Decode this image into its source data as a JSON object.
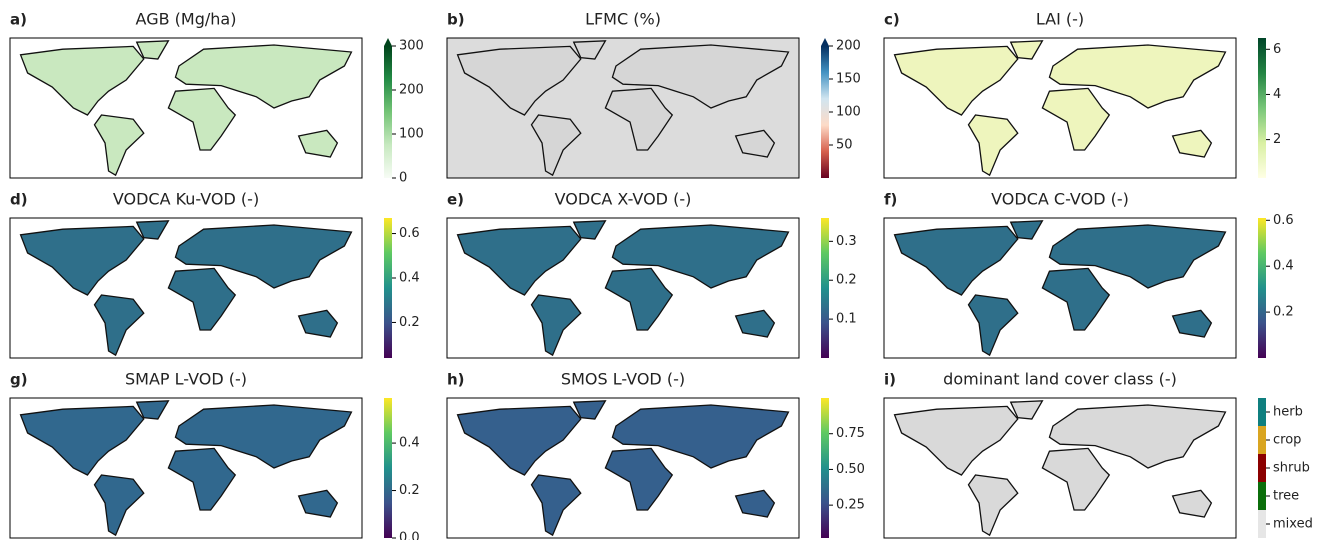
{
  "panels": [
    {
      "label": "a)",
      "title": "AGB (Mg/ha)",
      "background": "#ffffff",
      "land_color": "#c9e8bf",
      "colorbar": {
        "lim": [
          0,
          300
        ],
        "ticks": [
          0,
          100,
          200,
          300
        ],
        "extend": "max",
        "colors": [
          "#f7fcf5",
          "#c7e9c0",
          "#74c476",
          "#238b45",
          "#00441b"
        ]
      }
    },
    {
      "label": "b)",
      "title": "LFMC (%)",
      "background": "#dcdcdc",
      "land_color": "#d6d6d6",
      "colorbar": {
        "lim": [
          0,
          200
        ],
        "ticks": [
          50,
          100,
          150,
          200
        ],
        "extend": "max",
        "colors": [
          "#67001f",
          "#d6604d",
          "#fddbc7",
          "#d1e5f0",
          "#4393c3",
          "#053061"
        ]
      }
    },
    {
      "label": "c)",
      "title": "LAI (-)",
      "background": "#ffffff",
      "land_color": "#eef5bd",
      "colorbar": {
        "lim": [
          0.3,
          6.5
        ],
        "ticks": [
          2,
          4,
          6
        ],
        "colors": [
          "#ffffe5",
          "#d9f0a3",
          "#78c679",
          "#238443",
          "#004529"
        ]
      }
    },
    {
      "label": "d)",
      "title": "VODCA Ku-VOD (-)",
      "background": "#ffffff",
      "land_color": "#2f6f8a",
      "colorbar": {
        "lim": [
          0.04,
          0.67
        ],
        "ticks": [
          0.2,
          0.4,
          0.6
        ],
        "colors": [
          "#440154",
          "#3b528b",
          "#21918c",
          "#5ec962",
          "#fde725"
        ]
      }
    },
    {
      "label": "e)",
      "title": "VODCA X-VOD (-)",
      "background": "#ffffff",
      "land_color": "#2f6f8a",
      "colorbar": {
        "lim": [
          0,
          0.36
        ],
        "ticks": [
          0.1,
          0.2,
          0.3
        ],
        "colors": [
          "#440154",
          "#3b528b",
          "#21918c",
          "#5ec962",
          "#fde725"
        ]
      }
    },
    {
      "label": "f)",
      "title": "VODCA C-VOD (-)",
      "background": "#ffffff",
      "land_color": "#2f6f8a",
      "colorbar": {
        "lim": [
          0,
          0.61
        ],
        "ticks": [
          0.2,
          0.4,
          0.6
        ],
        "colors": [
          "#440154",
          "#3b528b",
          "#21918c",
          "#5ec962",
          "#fde725"
        ]
      }
    },
    {
      "label": "g)",
      "title": "SMAP L-VOD (-)",
      "background": "#ffffff",
      "land_color": "#31688e",
      "colorbar": {
        "lim": [
          0,
          0.59
        ],
        "ticks": [
          {
            "value": 0,
            "label": "0.0"
          },
          0.2,
          0.4
        ],
        "colors": [
          "#440154",
          "#3b528b",
          "#21918c",
          "#5ec962",
          "#fde725"
        ]
      }
    },
    {
      "label": "h)",
      "title": "SMOS L-VOD (-)",
      "background": "#ffffff",
      "land_color": "#35608d",
      "colorbar": {
        "lim": [
          0.02,
          1.0
        ],
        "ticks": [
          0.25,
          {
            "value": 0.5,
            "label": "0.50"
          },
          0.75
        ],
        "colors": [
          "#440154",
          "#3b528b",
          "#21918c",
          "#5ec962",
          "#fde725"
        ]
      }
    },
    {
      "label": "i)",
      "title": "dominant land cover class (-)",
      "background": "#ffffff",
      "land_color": "#d9d9d9",
      "colorbar": {
        "classes": [
          {
            "name": "mixed",
            "color": "#e6e6e6"
          },
          {
            "name": "tree",
            "color": "#0b6e0b"
          },
          {
            "name": "shrub",
            "color": "#8b0000"
          },
          {
            "name": "crop",
            "color": "#d9a521"
          },
          {
            "name": "herb",
            "color": "#0f7f7f"
          }
        ]
      }
    }
  ]
}
